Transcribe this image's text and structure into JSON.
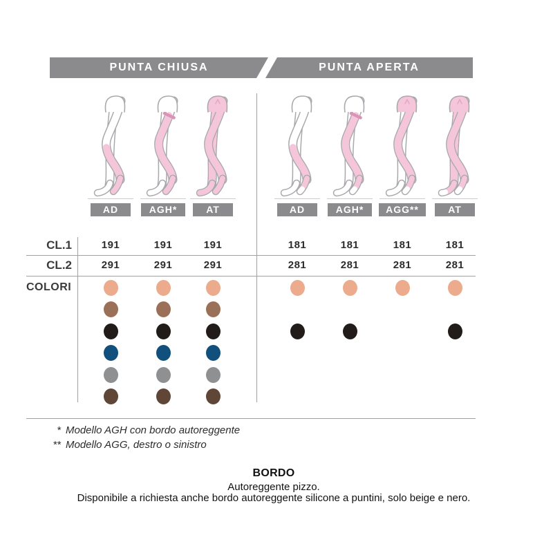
{
  "header": {
    "left_label": "PUNTA CHIUSA",
    "right_label": "PUNTA APERTA",
    "bar_color": "#8b8a8c",
    "text_color": "#ffffff"
  },
  "groups": [
    {
      "id": "punta_chiusa",
      "columns": [
        {
          "label": "AD",
          "model": "AD",
          "open_toe": false
        },
        {
          "label": "AGH*",
          "model": "AGH",
          "open_toe": false
        },
        {
          "label": "AT",
          "model": "AT",
          "open_toe": false
        }
      ]
    },
    {
      "id": "punta_aperta",
      "columns": [
        {
          "label": "AD",
          "model": "AD",
          "open_toe": true
        },
        {
          "label": "AGH*",
          "model": "AGH",
          "open_toe": true
        },
        {
          "label": "AGG**",
          "model": "AGG",
          "open_toe": true
        },
        {
          "label": "AT",
          "model": "AT",
          "open_toe": true
        }
      ]
    }
  ],
  "codes": {
    "rows": [
      {
        "label": "CL.1",
        "punta_chiusa": [
          "191",
          "191",
          "191"
        ],
        "punta_aperta": [
          "181",
          "181",
          "181",
          "181"
        ]
      },
      {
        "label": "CL.2",
        "punta_chiusa": [
          "291",
          "291",
          "291"
        ],
        "punta_aperta": [
          "281",
          "281",
          "281",
          "281"
        ]
      }
    ]
  },
  "colori": {
    "label": "COLORI",
    "palette": [
      {
        "name": "beige",
        "hex": "#ebab8c"
      },
      {
        "name": "marrone",
        "hex": "#9b7058"
      },
      {
        "name": "nero",
        "hex": "#211c19"
      },
      {
        "name": "blu",
        "hex": "#11507c"
      },
      {
        "name": "grigio",
        "hex": "#8f9092"
      },
      {
        "name": "moro",
        "hex": "#5f4637"
      }
    ],
    "availability": {
      "punta_chiusa": [
        [
          1,
          1,
          1,
          1,
          1,
          1
        ],
        [
          1,
          1,
          1,
          1,
          1,
          1
        ],
        [
          1,
          1,
          1,
          1,
          1,
          1
        ]
      ],
      "punta_aperta": [
        [
          1,
          0,
          1,
          0,
          0,
          0
        ],
        [
          1,
          0,
          1,
          0,
          0,
          0
        ],
        [
          1,
          0,
          0,
          0,
          0,
          0
        ],
        [
          1,
          0,
          1,
          0,
          0,
          0
        ]
      ]
    }
  },
  "footnotes": [
    {
      "marker": "*",
      "text": "Modello AGH con bordo autoreggente"
    },
    {
      "marker": "**",
      "text": "Modello AGG, destro o sinistro"
    }
  ],
  "bordo": {
    "title": "BORDO",
    "line1": "Autoreggente pizzo.",
    "line2": "Disponibile a richiesta anche bordo autoreggente silicone a puntini, solo beige e nero."
  },
  "illustration": {
    "stocking_pink": "#f5c6da",
    "outline_gray": "#aaa8ac",
    "band_pink": "#d893b8",
    "seam_pink": "#e2a6c6"
  }
}
